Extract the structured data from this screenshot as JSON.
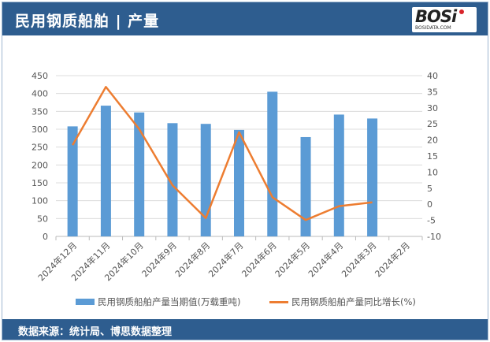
{
  "header": {
    "title": "民用钢质船舶 | 产量",
    "logo_text": "BOSi",
    "logo_url_text": "BOSIDATA.COM"
  },
  "footer": {
    "source": "数据来源：统计局、博思数据整理"
  },
  "colors": {
    "bar": "#5b9bd5",
    "line": "#ed7d31",
    "header": "#2e5d8f"
  },
  "chart_data": {
    "type": "bar+line",
    "categories": [
      "2024年12月",
      "2024年11月",
      "2024年10月",
      "2024年9月",
      "2024年8月",
      "2024年7月",
      "2024年6月",
      "2024年5月",
      "2024年4月",
      "2024年3月",
      "2024年2月"
    ],
    "series": [
      {
        "name": "民用钢质船舶产量当期值(万载重吨)",
        "type": "bar",
        "axis": "left",
        "values": [
          308,
          366,
          347,
          317,
          315,
          298,
          405,
          278,
          341,
          330,
          null
        ]
      },
      {
        "name": "民用钢质船舶产量同比增长(%)",
        "type": "line",
        "axis": "right",
        "values": [
          18.4,
          36.5,
          23.4,
          5.9,
          -4.3,
          22.4,
          2.2,
          -4.9,
          -0.6,
          0.6,
          null
        ]
      }
    ],
    "left_axis": {
      "ylim": [
        0,
        450
      ],
      "ticks": [
        "0",
        "50",
        "100",
        "150",
        "200",
        "250",
        "300",
        "350",
        "400",
        "450"
      ]
    },
    "right_axis": {
      "ylim": [
        -10,
        40
      ],
      "ticks": [
        "-10",
        "-5",
        "0",
        "5",
        "10",
        "15",
        "20",
        "25",
        "30",
        "35",
        "40"
      ]
    },
    "grid": true,
    "legend": "bottom"
  }
}
